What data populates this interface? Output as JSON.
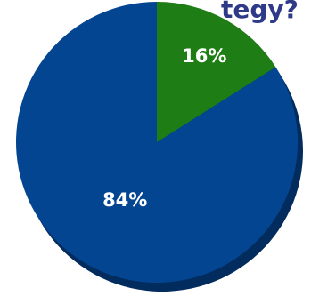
{
  "chart_data": {
    "type": "pie",
    "title": "tegy?",
    "slices": [
      {
        "label": "16%",
        "value": 16,
        "color": "#1e7d14",
        "shade": "#124f0c"
      },
      {
        "label": "84%",
        "value": 84,
        "color": "#044592",
        "shade": "#032c5e"
      }
    ]
  }
}
